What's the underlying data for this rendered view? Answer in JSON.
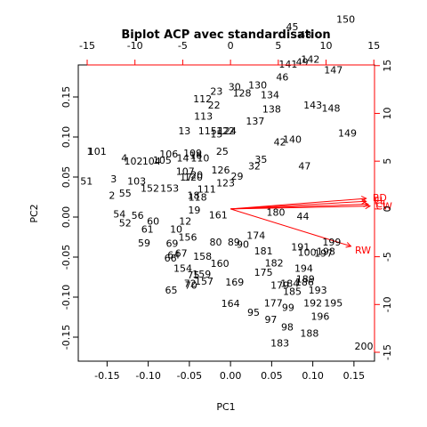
{
  "chart_data": {
    "type": "scatter",
    "title": "Biplot ACP avec standardisation",
    "xlabel": "PC1",
    "ylabel": "PC2",
    "xlim": [
      -0.185,
      0.175
    ],
    "ylim": [
      -0.18,
      0.19
    ],
    "x_ticks": [
      -0.15,
      -0.1,
      -0.05,
      0.0,
      0.05,
      0.1,
      0.15
    ],
    "y_ticks": [
      -0.15,
      -0.1,
      -0.05,
      0.0,
      0.05,
      0.1,
      0.15
    ],
    "top_ticks": [
      -15,
      -10,
      -5,
      0,
      5,
      10,
      15
    ],
    "right_ticks": [
      -15,
      -10,
      -5,
      0,
      5,
      10,
      15
    ],
    "loadings_lim": [
      -15.93,
      15.07
    ],
    "loadings_color": "#ff0000",
    "observations": [
      {
        "label": "1",
        "x": -0.171,
        "y": 0.082
      },
      {
        "label": "2",
        "x": -0.144,
        "y": 0.027
      },
      {
        "label": "3",
        "x": -0.142,
        "y": 0.048
      },
      {
        "label": "4",
        "x": -0.129,
        "y": 0.074
      },
      {
        "label": "10",
        "x": -0.066,
        "y": -0.015
      },
      {
        "label": "12",
        "x": -0.055,
        "y": -0.005
      },
      {
        "label": "13",
        "x": -0.056,
        "y": 0.108
      },
      {
        "label": "14",
        "x": -0.058,
        "y": 0.074
      },
      {
        "label": "15",
        "x": -0.017,
        "y": 0.104
      },
      {
        "label": "16",
        "x": -0.042,
        "y": 0.077
      },
      {
        "label": "17",
        "x": -0.054,
        "y": 0.05
      },
      {
        "label": "18",
        "x": -0.045,
        "y": 0.027
      },
      {
        "label": "19",
        "x": -0.044,
        "y": 0.009
      },
      {
        "label": "20",
        "x": -0.041,
        "y": 0.053
      },
      {
        "label": "22",
        "x": -0.02,
        "y": 0.14
      },
      {
        "label": "23",
        "x": -0.017,
        "y": 0.157
      },
      {
        "label": "25",
        "x": -0.01,
        "y": 0.082
      },
      {
        "label": "29",
        "x": 0.008,
        "y": 0.051
      },
      {
        "label": "30",
        "x": 0.005,
        "y": 0.163
      },
      {
        "label": "32",
        "x": 0.029,
        "y": 0.064
      },
      {
        "label": "35",
        "x": 0.037,
        "y": 0.072
      },
      {
        "label": "42",
        "x": 0.06,
        "y": 0.094
      },
      {
        "label": "44",
        "x": 0.088,
        "y": 0.001
      },
      {
        "label": "45",
        "x": 0.075,
        "y": 0.238
      },
      {
        "label": "46",
        "x": 0.063,
        "y": 0.175
      },
      {
        "label": "47",
        "x": 0.09,
        "y": 0.064
      },
      {
        "label": "48",
        "x": 0.091,
        "y": 0.228
      },
      {
        "label": "49",
        "x": 0.087,
        "y": 0.194
      },
      {
        "label": "51",
        "x": -0.175,
        "y": 0.045
      },
      {
        "label": "52",
        "x": -0.128,
        "y": -0.007
      },
      {
        "label": "54",
        "x": -0.135,
        "y": 0.004
      },
      {
        "label": "55",
        "x": -0.128,
        "y": 0.03
      },
      {
        "label": "56",
        "x": -0.113,
        "y": 0.002
      },
      {
        "label": "59",
        "x": -0.105,
        "y": -0.032
      },
      {
        "label": "60",
        "x": -0.094,
        "y": -0.005
      },
      {
        "label": "61",
        "x": -0.101,
        "y": -0.015
      },
      {
        "label": "64",
        "x": -0.069,
        "y": -0.047
      },
      {
        "label": "65",
        "x": -0.072,
        "y": -0.091
      },
      {
        "label": "66",
        "x": -0.073,
        "y": -0.051
      },
      {
        "label": "67",
        "x": -0.06,
        "y": -0.045
      },
      {
        "label": "69",
        "x": -0.071,
        "y": -0.033
      },
      {
        "label": "70",
        "x": -0.048,
        "y": -0.085
      },
      {
        "label": "72",
        "x": -0.049,
        "y": -0.083
      },
      {
        "label": "75",
        "x": -0.045,
        "y": -0.072
      },
      {
        "label": "80",
        "x": -0.018,
        "y": -0.031
      },
      {
        "label": "89",
        "x": 0.004,
        "y": -0.031
      },
      {
        "label": "90",
        "x": 0.015,
        "y": -0.034
      },
      {
        "label": "95",
        "x": 0.028,
        "y": -0.119
      },
      {
        "label": "97",
        "x": 0.049,
        "y": -0.128
      },
      {
        "label": "98",
        "x": 0.069,
        "y": -0.137
      },
      {
        "label": "99",
        "x": 0.07,
        "y": -0.113
      },
      {
        "label": "100",
        "x": 0.093,
        "y": -0.044
      },
      {
        "label": "101",
        "x": -0.162,
        "y": 0.082
      },
      {
        "label": "102",
        "x": -0.118,
        "y": 0.07
      },
      {
        "label": "103",
        "x": -0.114,
        "y": 0.045
      },
      {
        "label": "104",
        "x": -0.096,
        "y": 0.07
      },
      {
        "label": "105",
        "x": -0.083,
        "y": 0.071
      },
      {
        "label": "106",
        "x": -0.075,
        "y": 0.079
      },
      {
        "label": "107",
        "x": -0.055,
        "y": 0.057
      },
      {
        "label": "109",
        "x": -0.046,
        "y": 0.08
      },
      {
        "label": "110",
        "x": -0.037,
        "y": 0.074
      },
      {
        "label": "111",
        "x": -0.029,
        "y": 0.035
      },
      {
        "label": "112",
        "x": -0.034,
        "y": 0.148
      },
      {
        "label": "113",
        "x": -0.033,
        "y": 0.126
      },
      {
        "label": "115",
        "x": -0.028,
        "y": 0.108
      },
      {
        "label": "118",
        "x": -0.04,
        "y": 0.025
      },
      {
        "label": "120",
        "x": -0.045,
        "y": 0.05
      },
      {
        "label": "122",
        "x": -0.006,
        "y": 0.108
      },
      {
        "label": "123",
        "x": -0.006,
        "y": 0.043
      },
      {
        "label": "124",
        "x": -0.004,
        "y": 0.108
      },
      {
        "label": "126",
        "x": -0.012,
        "y": 0.059
      },
      {
        "label": "128",
        "x": 0.014,
        "y": 0.155
      },
      {
        "label": "130",
        "x": 0.033,
        "y": 0.165
      },
      {
        "label": "134",
        "x": 0.048,
        "y": 0.153
      },
      {
        "label": "137",
        "x": 0.03,
        "y": 0.12
      },
      {
        "label": "138",
        "x": 0.05,
        "y": 0.135
      },
      {
        "label": "140",
        "x": 0.075,
        "y": 0.097
      },
      {
        "label": "141",
        "x": 0.07,
        "y": 0.191
      },
      {
        "label": "142",
        "x": 0.097,
        "y": 0.197
      },
      {
        "label": "143",
        "x": 0.1,
        "y": 0.14
      },
      {
        "label": "147",
        "x": 0.125,
        "y": 0.184
      },
      {
        "label": "148",
        "x": 0.122,
        "y": 0.136
      },
      {
        "label": "149",
        "x": 0.142,
        "y": 0.105
      },
      {
        "label": "150",
        "x": 0.14,
        "y": 0.247
      },
      {
        "label": "152",
        "x": -0.098,
        "y": 0.036
      },
      {
        "label": "153",
        "x": -0.074,
        "y": 0.036
      },
      {
        "label": "154",
        "x": -0.058,
        "y": -0.064
      },
      {
        "label": "156",
        "x": -0.052,
        "y": -0.025
      },
      {
        "label": "157",
        "x": -0.032,
        "y": -0.08
      },
      {
        "label": "158",
        "x": -0.034,
        "y": -0.049
      },
      {
        "label": "159",
        "x": -0.035,
        "y": -0.071
      },
      {
        "label": "160",
        "x": -0.013,
        "y": -0.058
      },
      {
        "label": "161",
        "x": -0.015,
        "y": 0.003
      },
      {
        "label": "164",
        "x": 0.0,
        "y": -0.108
      },
      {
        "label": "169",
        "x": 0.005,
        "y": -0.081
      },
      {
        "label": "174",
        "x": 0.031,
        "y": -0.023
      },
      {
        "label": "175",
        "x": 0.04,
        "y": -0.069
      },
      {
        "label": "177",
        "x": 0.052,
        "y": -0.107
      },
      {
        "label": "179",
        "x": 0.06,
        "y": -0.085
      },
      {
        "label": "180",
        "x": 0.055,
        "y": 0.006
      },
      {
        "label": "181",
        "x": 0.04,
        "y": -0.042
      },
      {
        "label": "182",
        "x": 0.053,
        "y": -0.057
      },
      {
        "label": "183",
        "x": 0.06,
        "y": -0.157
      },
      {
        "label": "184",
        "x": 0.072,
        "y": -0.083
      },
      {
        "label": "185",
        "x": 0.075,
        "y": -0.093
      },
      {
        "label": "186",
        "x": 0.09,
        "y": -0.081
      },
      {
        "label": "188",
        "x": 0.096,
        "y": -0.145
      },
      {
        "label": "189",
        "x": 0.091,
        "y": -0.077
      },
      {
        "label": "191",
        "x": 0.085,
        "y": -0.037
      },
      {
        "label": "192",
        "x": 0.1,
        "y": -0.107
      },
      {
        "label": "193",
        "x": 0.106,
        "y": -0.091
      },
      {
        "label": "194",
        "x": 0.089,
        "y": -0.064
      },
      {
        "label": "195",
        "x": 0.125,
        "y": -0.107
      },
      {
        "label": "196",
        "x": 0.109,
        "y": -0.124
      },
      {
        "label": "197",
        "x": 0.113,
        "y": -0.045
      },
      {
        "label": "198",
        "x": 0.116,
        "y": -0.043
      },
      {
        "label": "199",
        "x": 0.123,
        "y": -0.031
      },
      {
        "label": "200",
        "x": 0.162,
        "y": -0.161
      }
    ],
    "loadings": [
      {
        "label": "FL",
        "x": 14.2,
        "y": 0.8
      },
      {
        "label": "CL",
        "x": 14.4,
        "y": 0.5
      },
      {
        "label": "CW",
        "x": 14.6,
        "y": 0.3
      },
      {
        "label": "BD",
        "x": 14.2,
        "y": 1.1
      },
      {
        "label": "RW",
        "x": 12.6,
        "y": -3.9
      }
    ]
  }
}
